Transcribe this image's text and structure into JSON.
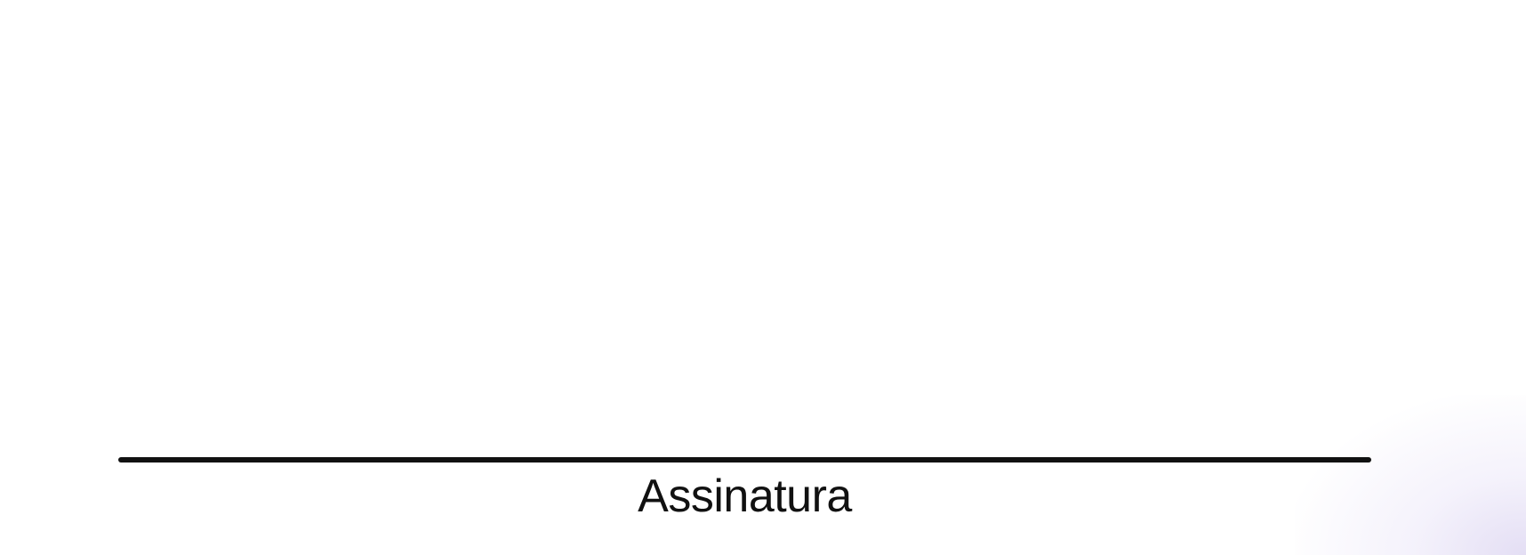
{
  "signature": {
    "label": "Assinatura"
  },
  "colors": {
    "background": "#ffffff",
    "line": "#111111",
    "text": "#111111",
    "corner_tint": "#cdc3eb"
  }
}
